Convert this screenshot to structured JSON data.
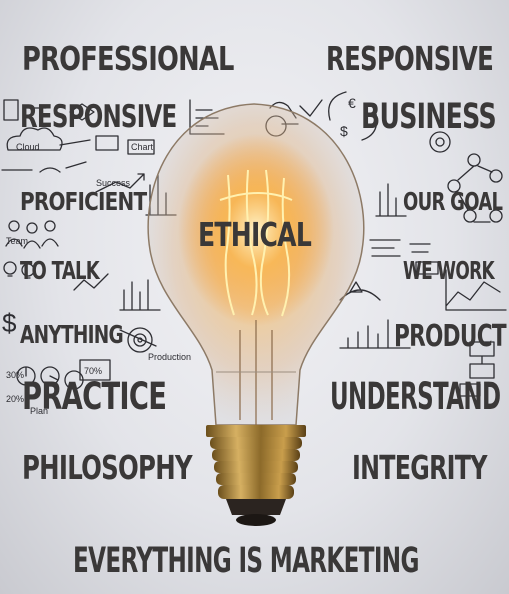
{
  "words": {
    "professional": "PROFESSIONAL",
    "responsive_right": "RESPONSIVE",
    "responsive_left": "RESPONSIVE",
    "business": "BUSINESS",
    "proficient": "PROFICIENT",
    "our_goal": "OUR GOAL",
    "ethical": "ETHICAL",
    "to_talk": "TO TALK",
    "we_work": "WE WORK",
    "anything": "ANYTHING",
    "product": "PRODUCT",
    "practice": "PRACTICE",
    "understand": "UNDERSTAND",
    "philosophy": "PHILOSOPHY",
    "integrity": "INTEGRITY",
    "everything_is_marketing": "EVERYTHING IS MARKETING"
  },
  "doodle_labels": {
    "cloud": "Cloud",
    "success": "Success",
    "team": "Team",
    "production": "Production",
    "plan": "Plan",
    "percent_a": "30%",
    "percent_b": "70%",
    "percent_c": "20%",
    "chart_label": "Chart",
    "text_label": "Text"
  },
  "colors": {
    "text": "#3a3838",
    "doodle": "#2e2e33",
    "glow": "#f6a640",
    "brass": "#b8913e"
  }
}
